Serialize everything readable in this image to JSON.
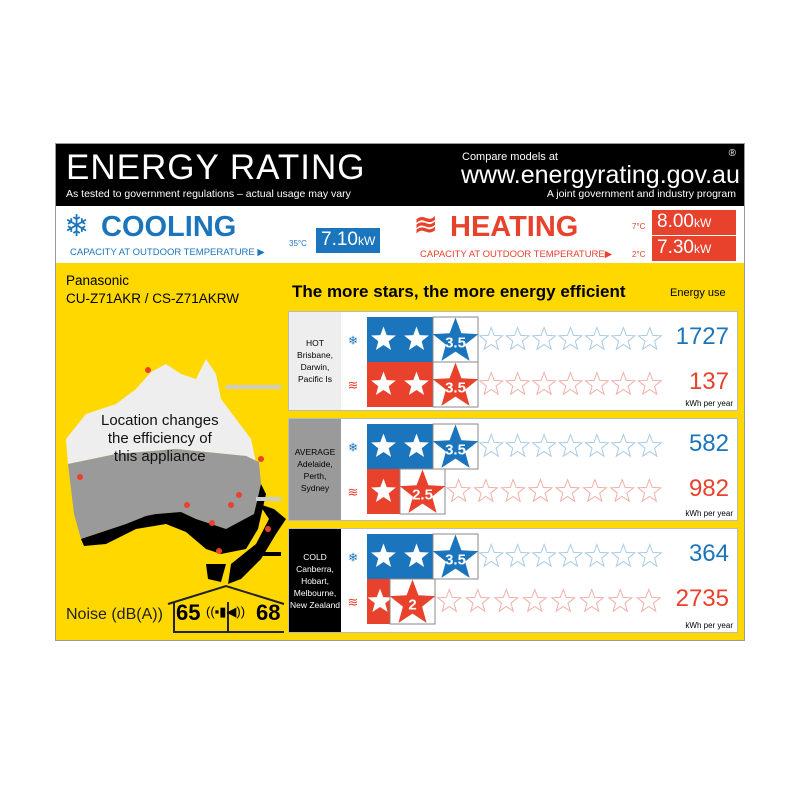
{
  "header": {
    "title": "ENERGY RATING",
    "subtitle": "As tested to government regulations – actual usage may vary",
    "compare": "Compare models at",
    "url": "www.energyrating.gov.au",
    "program": "A joint government and industry program",
    "registered": "®"
  },
  "cooling": {
    "label": "COOLING",
    "sub": "CAPACITY AT OUTDOOR TEMPERATURE ▶",
    "temp": "35°C",
    "value": "7.10",
    "unit": "kW",
    "color": "#1a75bc"
  },
  "heating": {
    "label": "HEATING",
    "sub": "CAPACITY AT OUTDOOR TEMPERATURE▶",
    "rows": [
      {
        "temp": "7°C",
        "value": "8.00",
        "unit": "kW"
      },
      {
        "temp": "2°C",
        "value": "7.30",
        "unit": "kW"
      }
    ],
    "color": "#e8412c"
  },
  "product": {
    "brand": "Panasonic",
    "model": "CU-Z71AKR / CS-Z71AKRW"
  },
  "motto": "The more stars, the more energy efficient",
  "energy_use_label": "Energy use",
  "kwh_label": "kWh per year",
  "map_text": [
    "Location changes",
    "the efficiency of",
    "this appliance"
  ],
  "noise": {
    "label": "Noise (dB(A))",
    "indoor": "65",
    "outdoor": "68"
  },
  "zones": [
    {
      "name": "HOT",
      "cities": [
        "Brisbane,",
        "Darwin,",
        "Pacific Is"
      ],
      "cooling_stars": 3.5,
      "cooling_label": "3.5",
      "cooling_kwh": "1727",
      "heating_stars": 3.5,
      "heating_label": "3.5",
      "heating_kwh": "137"
    },
    {
      "name": "AVERAGE",
      "cities": [
        "Adelaide,",
        "Perth,",
        "Sydney"
      ],
      "cooling_stars": 3.5,
      "cooling_label": "3.5",
      "cooling_kwh": "582",
      "heating_stars": 2.5,
      "heating_label": "2.5",
      "heating_kwh": "982"
    },
    {
      "name": "COLD",
      "cities": [
        "Canberra,",
        "Hobart,",
        "Melbourne,",
        "New Zealand"
      ],
      "cooling_stars": 3.5,
      "cooling_label": "3.5",
      "cooling_kwh": "364",
      "heating_stars": 2,
      "heating_label": "2",
      "heating_kwh": "2735"
    }
  ],
  "max_stars": 10
}
